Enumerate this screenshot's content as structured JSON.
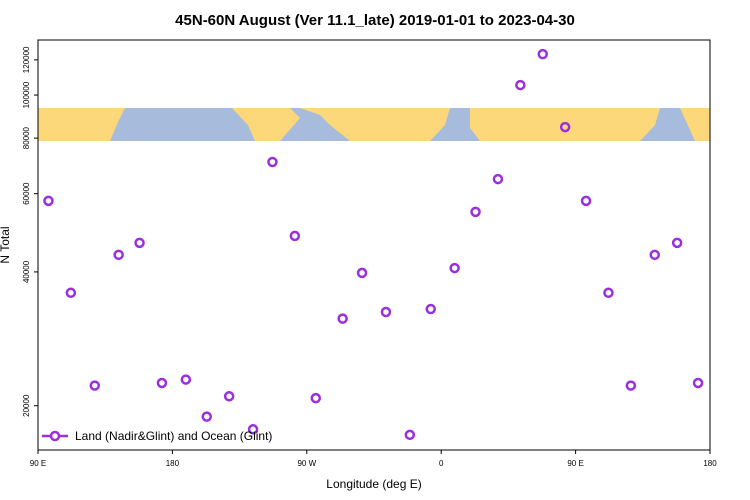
{
  "chart_data": {
    "type": "scatter",
    "title": "45N-60N August (Ver 11.1_late)   2019-01-01 to 2023-04-30",
    "x_label": "Longitude (deg E)",
    "y_label": "N Total",
    "log_y": true,
    "legend": "bottom-left",
    "xlim": [
      90,
      540
    ],
    "xticks": [
      {
        "value": 90,
        "label": "90 E"
      },
      180,
      {
        "value": 270,
        "label": "90 W"
      },
      {
        "value": 360,
        "label": "0"
      },
      {
        "value": 450,
        "label": "90 E"
      },
      {
        "value": 540,
        "label": "180"
      }
    ],
    "ylim": [
      15900,
      133000
    ],
    "yticks": [
      20000,
      40000,
      60000,
      80000,
      100000,
      120000
    ],
    "series": [
      {
        "name": "Land (Nadir&Glint) and Ocean (Glint)",
        "color": "#9b2fe0",
        "x": [
          97,
          112,
          128,
          144,
          158,
          173,
          189,
          203,
          218,
          234,
          247,
          262,
          276,
          294,
          307,
          323,
          339,
          353,
          369,
          383,
          398,
          413,
          428,
          443,
          457,
          472,
          487,
          503,
          518,
          532
        ],
        "values": [
          57800,
          35900,
          22200,
          43700,
          46500,
          22500,
          22900,
          18900,
          21000,
          17700,
          70700,
          48200,
          20800,
          31400,
          39800,
          32500,
          17200,
          33000,
          40800,
          54600,
          64700,
          105300,
          123600,
          84700,
          57800,
          35900,
          22200,
          43700,
          46500,
          22500
        ]
      }
    ]
  }
}
